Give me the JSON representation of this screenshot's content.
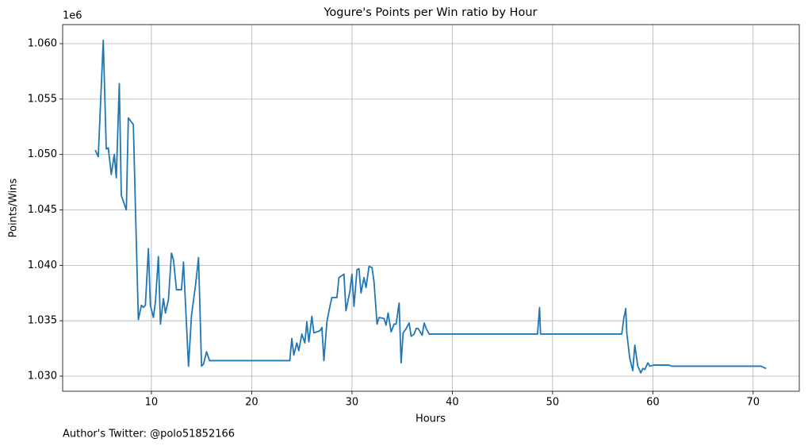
{
  "chart_data": {
    "type": "line",
    "title": "Yogure's Points per Win ratio by Hour",
    "x_label": "Hours",
    "y_label": "Points/Wins",
    "y_offset": "1e6",
    "footnote": "Author's Twitter: @polo51852166",
    "color": "#1f77b4",
    "grid": true,
    "xlim": [
      1.15,
      74.6
    ],
    "ylim": [
      1028640,
      1061720
    ],
    "xticks": [
      10,
      20,
      30,
      40,
      50,
      60,
      70
    ],
    "yticks": [
      {
        "value": 1030000,
        "label": "1.030"
      },
      {
        "value": 1035000,
        "label": "1.035"
      },
      {
        "value": 1040000,
        "label": "1.040"
      },
      {
        "value": 1045000,
        "label": "1.045"
      },
      {
        "value": 1050000,
        "label": "1.050"
      },
      {
        "value": 1055000,
        "label": "1.055"
      },
      {
        "value": 1060000,
        "label": "1.060"
      }
    ],
    "x": [
      4.4,
      4.7,
      5.2,
      5.5,
      5.7,
      6.0,
      6.3,
      6.5,
      6.8,
      7.0,
      7.5,
      7.7,
      8.2,
      8.4,
      8.7,
      9.0,
      9.2,
      9.4,
      9.7,
      9.9,
      10.2,
      10.4,
      10.7,
      10.9,
      11.2,
      11.4,
      11.7,
      12.0,
      12.2,
      12.5,
      13.0,
      13.2,
      13.7,
      14.0,
      14.4,
      14.7,
      15.0,
      15.2,
      15.5,
      15.8,
      16.2,
      23.8,
      24.0,
      24.2,
      24.5,
      24.7,
      25.0,
      25.3,
      25.5,
      25.7,
      26.0,
      26.2,
      26.8,
      27.0,
      27.2,
      27.5,
      27.8,
      28.0,
      28.5,
      28.7,
      29.2,
      29.4,
      29.8,
      30.0,
      30.2,
      30.5,
      30.7,
      30.9,
      31.2,
      31.4,
      31.7,
      32.0,
      32.2,
      32.5,
      32.7,
      33.2,
      33.4,
      33.6,
      33.9,
      34.2,
      34.4,
      34.7,
      34.9,
      35.1,
      35.4,
      35.7,
      35.9,
      36.2,
      36.4,
      36.6,
      37.0,
      37.2,
      37.4,
      37.7,
      48.5,
      48.7,
      48.8,
      56.9,
      57.1,
      57.3,
      57.4,
      57.7,
      58.0,
      58.2,
      58.5,
      58.8,
      59.0,
      59.2,
      59.5,
      59.7,
      60.1,
      61.6,
      61.9,
      70.8,
      71.0,
      71.3
    ],
    "values": [
      1050400,
      1049800,
      1060300,
      1050500,
      1050600,
      1048200,
      1050000,
      1047900,
      1056400,
      1046300,
      1045000,
      1053300,
      1052700,
      1045500,
      1035100,
      1036400,
      1036200,
      1036400,
      1041500,
      1036400,
      1035300,
      1036700,
      1040800,
      1034700,
      1037000,
      1035700,
      1036900,
      1041100,
      1040500,
      1037800,
      1037800,
      1040300,
      1030900,
      1035500,
      1038200,
      1040700,
      1030900,
      1031100,
      1032200,
      1031400,
      1031400,
      1031400,
      1033400,
      1031900,
      1033000,
      1032300,
      1033800,
      1033000,
      1034900,
      1033100,
      1035400,
      1033900,
      1034100,
      1034400,
      1031400,
      1034900,
      1036300,
      1037100,
      1037100,
      1038900,
      1039200,
      1035900,
      1037700,
      1039200,
      1036300,
      1039600,
      1039700,
      1037500,
      1038900,
      1038000,
      1039900,
      1039800,
      1038500,
      1034700,
      1035300,
      1035200,
      1034600,
      1035700,
      1034000,
      1034700,
      1034700,
      1036600,
      1031200,
      1033900,
      1034300,
      1034800,
      1033600,
      1033800,
      1034300,
      1034300,
      1033700,
      1034800,
      1034300,
      1033800,
      1033800,
      1036200,
      1033800,
      1033800,
      1035200,
      1036100,
      1033900,
      1031600,
      1030500,
      1032800,
      1030900,
      1030300,
      1030700,
      1030600,
      1031200,
      1030900,
      1031000,
      1031000,
      1030900,
      1030900,
      1030800,
      1030700
    ]
  }
}
